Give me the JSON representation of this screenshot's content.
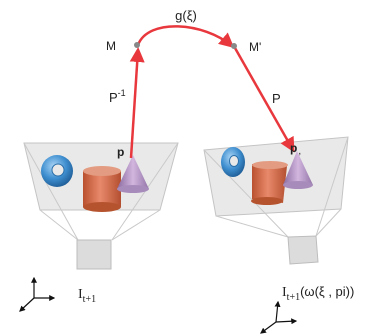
{
  "labels": {
    "g": "g(ξ)",
    "M": "M",
    "M_prime": "M'",
    "P_inv_base": "P",
    "P_inv_sup": "-1",
    "P": "P",
    "p_left": "p",
    "p_right": "p",
    "p_right_sub": ",",
    "I_left_base": "I",
    "I_left_sub": "t+1",
    "I_right_base": "I",
    "I_right_sub": "t+1",
    "I_right_args": "(ω(ξ , pi))"
  },
  "colors": {
    "arrow": "#e8383d",
    "point": "#888888",
    "screen": "#e7e7e7",
    "screen_edge": "#c4c4c4",
    "torus": "#3f8fd0",
    "cylinder": "#d76d4e",
    "cone": "#b48ac4",
    "axes": "#111111"
  }
}
